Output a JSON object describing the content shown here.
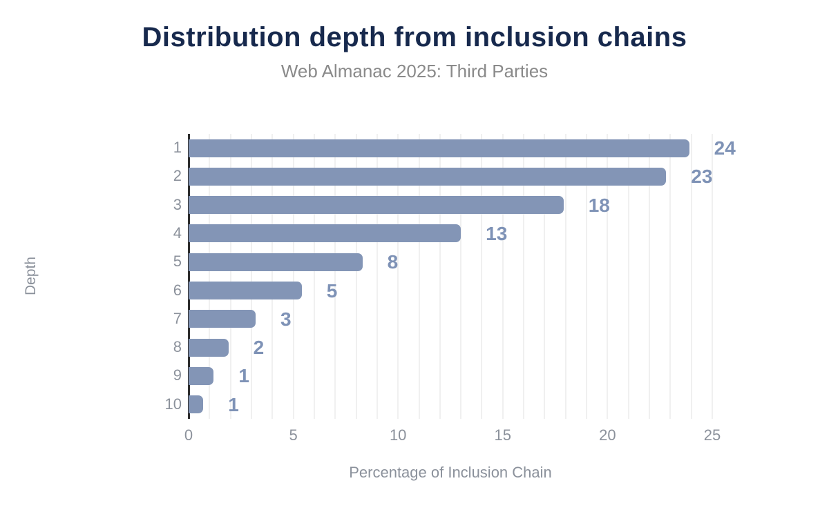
{
  "header": {
    "title": "Distribution depth from inclusion chains",
    "subtitle": "Web Almanac 2025: Third Parties"
  },
  "chart_data": {
    "type": "bar",
    "orientation": "horizontal",
    "title": "Distribution depth from inclusion chains",
    "subtitle": "Web Almanac 2025: Third Parties",
    "xlabel": "Percentage of Inclusion Chain",
    "ylabel": "Depth",
    "categories": [
      "1",
      "2",
      "3",
      "4",
      "5",
      "6",
      "7",
      "8",
      "9",
      "10"
    ],
    "values": [
      23.9,
      22.8,
      17.9,
      13.0,
      8.3,
      5.4,
      3.2,
      1.9,
      1.2,
      0.7
    ],
    "data_labels": [
      "24",
      "23",
      "18",
      "13",
      "8",
      "5",
      "3",
      "2",
      "1",
      "1"
    ],
    "xlim": [
      0,
      25
    ],
    "xticks": [
      0,
      5,
      10,
      15,
      20,
      25
    ],
    "grid": "vertical gridlines every 1 unit",
    "legend": "none"
  },
  "colors": {
    "background": "#ffffff",
    "bar": "#8395b6",
    "value_label": "#7e92b6",
    "title": "#17294d",
    "subtitle": "#8a8a8a",
    "axis_text": "#8b919b",
    "axis_line": "#2d2d2d",
    "gridline": "#f0f0f0"
  }
}
